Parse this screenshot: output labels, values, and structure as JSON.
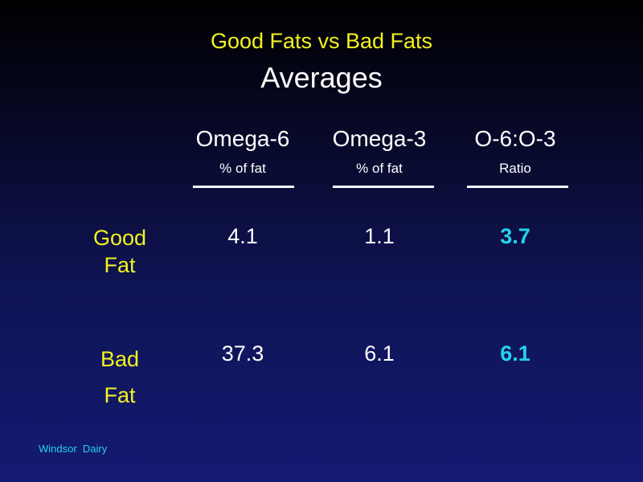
{
  "slide": {
    "title": "Good Fats vs Bad Fats",
    "subtitle": "Averages",
    "footer": "Windsor  Dairy"
  },
  "table": {
    "columns": [
      {
        "label": "Omega-6",
        "sublabel": "% of fat"
      },
      {
        "label": "Omega-3",
        "sublabel": "% of fat"
      },
      {
        "label": "O-6:O-3",
        "sublabel": "Ratio"
      }
    ],
    "rows": [
      {
        "label_line1": "Good",
        "label_line2": "Fat",
        "values": [
          "4.1",
          "1.1",
          "3.7"
        ]
      },
      {
        "label_line1": "Bad",
        "label_line2": "Fat",
        "values": [
          "37.3",
          "6.1",
          "6.1"
        ]
      }
    ]
  },
  "colors": {
    "title": "#f2f21e",
    "row_label": "#f2f21e",
    "ratio_value": "#22d3ee",
    "footer": "#22d3ee",
    "text": "#ffffff",
    "background_top": "#000000",
    "background_bottom": "#141a72"
  }
}
